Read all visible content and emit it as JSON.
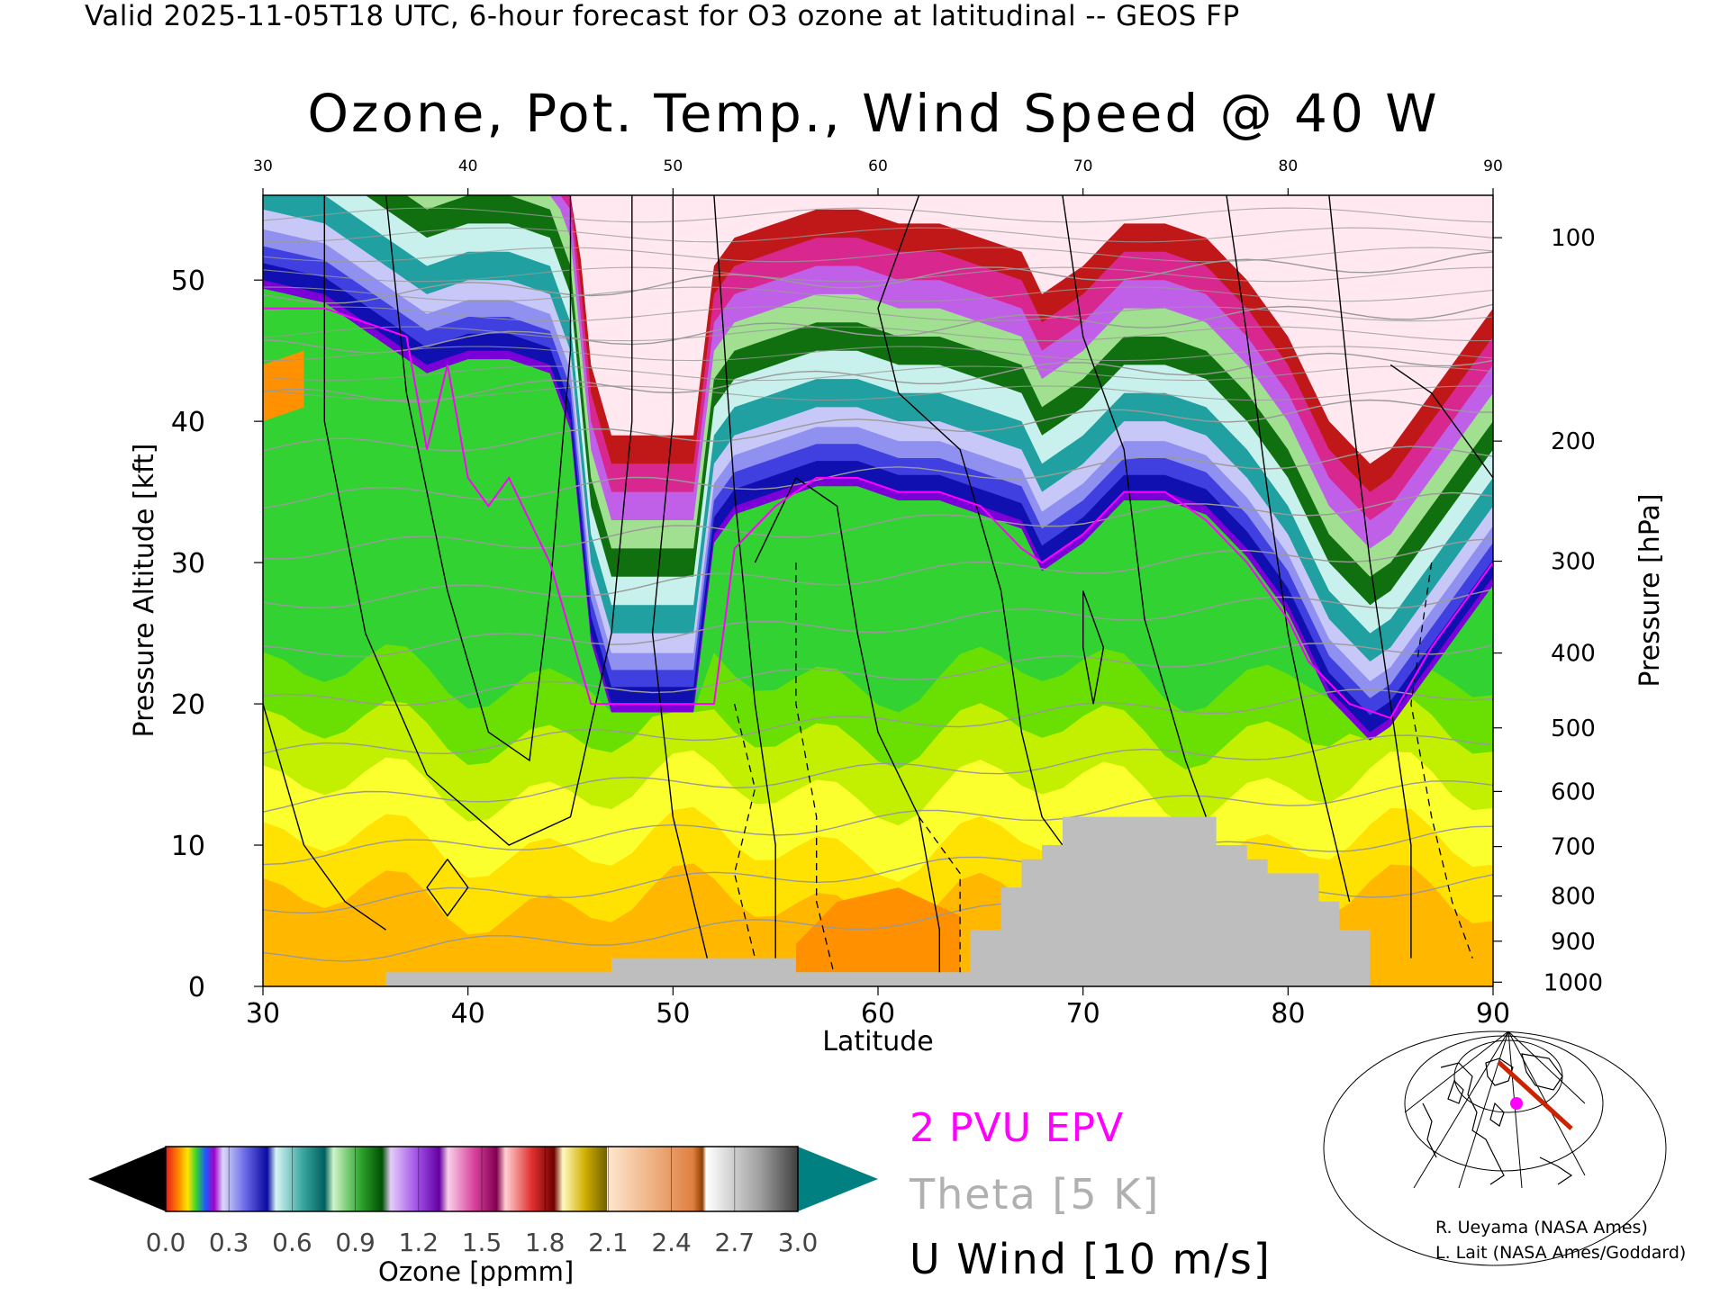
{
  "header": "Valid 2025-11-05T18 UTC, 6-hour forecast for O3 ozone at latitudinal -- GEOS FP",
  "title": "Ozone, Pot. Temp., Wind Speed @ 40 W",
  "chart_data": {
    "type": "heatmap",
    "title": "Ozone, Pot. Temp., Wind Speed @ 40 W",
    "xlabel": "Latitude",
    "ylabel": "Pressure Altitude [kft]",
    "ylabel_right": "Pressure [hPa]",
    "xlim": [
      30,
      90
    ],
    "ylim": [
      0,
      56
    ],
    "x_ticks": [
      "30",
      "40",
      "50",
      "60",
      "70",
      "80",
      "90"
    ],
    "y_ticks": [
      "0",
      "10",
      "20",
      "30",
      "40",
      "50"
    ],
    "pressure_ticks": [
      "100",
      "200",
      "300",
      "400",
      "500",
      "600",
      "700",
      "800",
      "900",
      "1000"
    ],
    "pressure_tick_kft": [
      53.0,
      38.6,
      30.1,
      23.6,
      18.3,
      13.8,
      9.9,
      6.4,
      3.2,
      0.3
    ],
    "colorbar": {
      "label": "Ozone [ppmm]",
      "ticks": [
        "0.0",
        "0.3",
        "0.6",
        "0.9",
        "1.2",
        "1.5",
        "1.8",
        "2.1",
        "2.4",
        "2.7",
        "3.0"
      ],
      "range": [
        0,
        3.0
      ]
    },
    "ozone_ceiling_kft": [
      [
        30,
        50
      ],
      [
        33,
        49
      ],
      [
        36,
        46
      ],
      [
        38,
        44
      ],
      [
        40,
        45
      ],
      [
        42,
        45
      ],
      [
        44,
        44
      ],
      [
        45,
        40
      ],
      [
        46,
        25
      ],
      [
        47,
        20
      ],
      [
        48,
        20
      ],
      [
        50,
        20
      ],
      [
        51,
        20
      ],
      [
        52,
        32
      ],
      [
        53,
        34
      ],
      [
        55,
        35
      ],
      [
        57,
        36
      ],
      [
        59,
        36
      ],
      [
        61,
        35
      ],
      [
        63,
        35
      ],
      [
        65,
        34
      ],
      [
        67,
        33
      ],
      [
        68,
        30
      ],
      [
        70,
        32
      ],
      [
        72,
        35
      ],
      [
        74,
        35
      ],
      [
        76,
        34
      ],
      [
        78,
        31
      ],
      [
        80,
        27
      ],
      [
        81,
        24
      ],
      [
        82,
        21
      ],
      [
        84,
        18
      ],
      [
        85,
        19
      ],
      [
        87,
        23
      ],
      [
        90,
        29
      ]
    ],
    "tropopause_2pvu_kft": [
      [
        30,
        48
      ],
      [
        33,
        48
      ],
      [
        35,
        47
      ],
      [
        37,
        46
      ],
      [
        38,
        38
      ],
      [
        39,
        44
      ],
      [
        40,
        36
      ],
      [
        41,
        34
      ],
      [
        42,
        36
      ],
      [
        44,
        30
      ],
      [
        45,
        25
      ],
      [
        46,
        20
      ],
      [
        48,
        20
      ],
      [
        50,
        20
      ],
      [
        52,
        20
      ],
      [
        53,
        31
      ],
      [
        55,
        34
      ],
      [
        57,
        36
      ],
      [
        59,
        36
      ],
      [
        61,
        35
      ],
      [
        63,
        35
      ],
      [
        65,
        34
      ],
      [
        67,
        31
      ],
      [
        68,
        30
      ],
      [
        70,
        32
      ],
      [
        72,
        35
      ],
      [
        74,
        35
      ],
      [
        76,
        33
      ],
      [
        78,
        30
      ],
      [
        80,
        26
      ],
      [
        81,
        23
      ],
      [
        83,
        20
      ],
      [
        85,
        19
      ],
      [
        87,
        24
      ],
      [
        90,
        30
      ]
    ],
    "surface_kft": [
      [
        30,
        0
      ],
      [
        36,
        0
      ],
      [
        36,
        1
      ],
      [
        47,
        1
      ],
      [
        47,
        2
      ],
      [
        56,
        2
      ],
      [
        56,
        1
      ],
      [
        64.5,
        1
      ],
      [
        64.5,
        4
      ],
      [
        66,
        4
      ],
      [
        66,
        7
      ],
      [
        67,
        7
      ],
      [
        67,
        9
      ],
      [
        68,
        9
      ],
      [
        68,
        10
      ],
      [
        69,
        10
      ],
      [
        69,
        12
      ],
      [
        76.5,
        12
      ],
      [
        76.5,
        10
      ],
      [
        78,
        10
      ],
      [
        78,
        9
      ],
      [
        79,
        9
      ],
      [
        79,
        8
      ],
      [
        81.5,
        8
      ],
      [
        81.5,
        6
      ],
      [
        82.5,
        6
      ],
      [
        82.5,
        4
      ],
      [
        84,
        4
      ],
      [
        84,
        0
      ],
      [
        90,
        0
      ]
    ],
    "theta_isentropes_K": [
      290,
      300,
      310,
      320,
      330,
      340,
      350,
      360,
      370,
      380,
      390,
      400,
      410,
      420
    ],
    "u_wind_contours_m_s": [
      -10,
      0,
      10,
      30,
      50
    ],
    "series": [
      {
        "name": "2 PVU EPV",
        "color": "#ff00ff"
      },
      {
        "name": "Theta [5 K]",
        "color": "#b0b0b0"
      },
      {
        "name": "U Wind [10 m/s]",
        "color": "#000000"
      }
    ]
  },
  "legend": {
    "epv": "2 PVU EPV",
    "theta": "Theta [5 K]",
    "uwind": "U Wind [10 m/s]"
  },
  "credits": {
    "line1": "R. Ueyama (NASA Ames)",
    "line2": "L. Lait (NASA Ames/Goddard)"
  },
  "locator_map": {
    "description": "polar stereographic locator map",
    "track_color": "#cc2200",
    "marker_color": "#ff00ff"
  }
}
